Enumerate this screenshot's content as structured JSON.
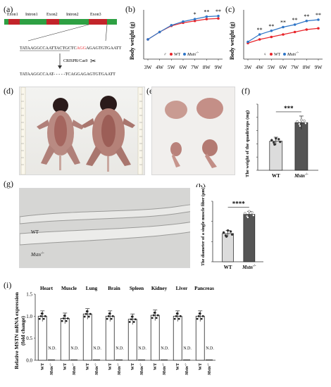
{
  "panels": {
    "a": {
      "label": "(a)",
      "exons": [
        "Exon1",
        "Intron1",
        "Exon2",
        "Intron2",
        "Exon3"
      ],
      "wt_seq_prefix": "TATAAGGCCAATTACTGCTC",
      "wt_seq_pam": "AGG",
      "wt_seq_suffix": "AGAGTGTGAATT",
      "method": "CRISPR/Cas9",
      "mut_seq": "TATAAGGCCAAT- - - - -TCAGGAGAGTGTGAATT"
    },
    "b": {
      "label": "(b)",
      "ylabel": "Body weight (g)",
      "legend_sex": "♂",
      "legend_wt": "WT",
      "legend_ko": "Mstn",
      "legend_ko_sup": "-/-",
      "sig_marks": [
        "*",
        "**",
        "**"
      ]
    },
    "c": {
      "label": "(c)",
      "ylabel": "Body weight (g)",
      "legend_sex": "♀",
      "legend_wt": "WT",
      "legend_ko": "Mstn",
      "legend_ko_sup": "-/-",
      "sig_marks": [
        "**",
        "**",
        "**",
        "**",
        "**",
        "**"
      ]
    },
    "d": {
      "label": "(d)"
    },
    "e": {
      "label": "(e)"
    },
    "f": {
      "label": "(f)",
      "ylabel": "The weight of the quadriceps (mg)",
      "categories": [
        "WT",
        "Mstn"
      ],
      "ko_sup": "-/-",
      "sig": "***"
    },
    "g": {
      "label": "(g)",
      "fiber_wt": "WT",
      "fiber_ko": "Mstn",
      "ko_sup": "-/-"
    },
    "h": {
      "label": "(h)",
      "ylabel": "The diameter of a single muscle fiber (μm)",
      "categories": [
        "WT",
        "Mstn"
      ],
      "ko_sup": "-/-",
      "sig": "****"
    },
    "i": {
      "label": "(i)",
      "ylabel": "Relative MSTN mRNA expression",
      "ylabel2": "(fold change)",
      "tissues": [
        "Heart",
        "Muscle",
        "Lung",
        "Brain",
        "Spleen",
        "Kidney",
        "Liver",
        "Pancreas"
      ],
      "nd_label": "N.D.",
      "xcat_wt": "WT",
      "xcat_ko": "Mstn",
      "ko_sup": "-/-"
    }
  },
  "chart_data": [
    {
      "id": "b",
      "type": "line",
      "x": [
        "3W",
        "4W",
        "5W",
        "6W",
        "7W",
        "8W",
        "9W"
      ],
      "ylim": [
        0,
        40
      ],
      "series": [
        {
          "name": "WT",
          "color": "#e8242a",
          "values": [
            16,
            22,
            27,
            29.5,
            31,
            32.5,
            33
          ]
        },
        {
          "name": "Mstn-/-",
          "color": "#2e75c7",
          "values": [
            16,
            22,
            27.5,
            30.5,
            32.5,
            34.5,
            35
          ]
        }
      ]
    },
    {
      "id": "c",
      "type": "line",
      "x": [
        "3W",
        "4W",
        "5W",
        "6W",
        "7W",
        "8W",
        "9W"
      ],
      "ylim": [
        0,
        40
      ],
      "series": [
        {
          "name": "WT",
          "color": "#e8242a",
          "values": [
            13,
            16,
            18,
            20,
            22,
            24,
            25
          ]
        },
        {
          "name": "Mstn-/-",
          "color": "#2e75c7",
          "values": [
            14,
            20,
            23,
            26,
            28,
            31,
            32
          ]
        }
      ]
    },
    {
      "id": "f",
      "type": "bar",
      "categories": [
        "WT",
        "Mstn-/-"
      ],
      "values": [
        220,
        360
      ],
      "errors": [
        30,
        50
      ],
      "ylim": [
        0,
        500
      ],
      "yticks": [
        0,
        100,
        200,
        300,
        400,
        500
      ]
    },
    {
      "id": "h",
      "type": "bar",
      "categories": [
        "WT",
        "Mstn-/-"
      ],
      "values": [
        28,
        47
      ],
      "errors": [
        3,
        3
      ],
      "ylim": [
        0,
        60
      ],
      "yticks": [
        0,
        20,
        40,
        60
      ]
    },
    {
      "id": "i",
      "type": "bar",
      "categories": [
        "Heart",
        "Muscle",
        "Lung",
        "Brain",
        "Spleen",
        "Kidney",
        "Liver",
        "Pancreas"
      ],
      "series": [
        {
          "name": "WT",
          "values": [
            1.0,
            0.95,
            1.05,
            1.0,
            0.93,
            1.02,
            1.0,
            1.0
          ]
        },
        {
          "name": "Mstn-/-",
          "values": [
            0,
            0,
            0,
            0,
            0,
            0,
            0,
            0
          ]
        }
      ],
      "ylim": [
        0,
        1.5
      ],
      "yticks": [
        0.0,
        0.5,
        1.0,
        1.5
      ]
    }
  ]
}
